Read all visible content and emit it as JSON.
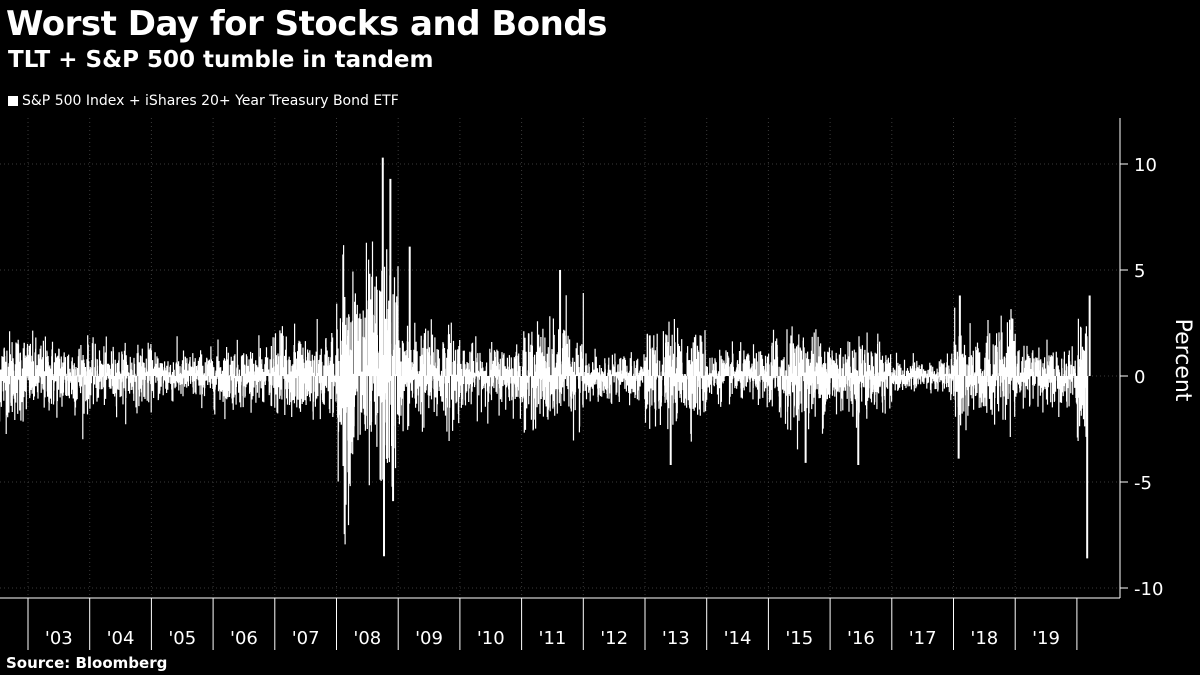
{
  "title": "Worst Day for Stocks and Bonds",
  "subtitle": "TLT + S&P 500 tumble in tandem",
  "source": "Source: Bloomberg",
  "colors": {
    "background": "#000000",
    "series": "#ffffff",
    "grid": "#3a3a3a"
  },
  "chart_data": {
    "type": "bar",
    "title": "Worst Day for Stocks and Bonds",
    "subtitle": "TLT + S&P 500 tumble in tandem",
    "ylabel": "Percent",
    "xlabel": "",
    "ylim": [
      -10.5,
      12
    ],
    "y_ticks": [
      10,
      5,
      0,
      -5,
      -10
    ],
    "y_tick_labels": [
      "10",
      "5",
      "0",
      "-5",
      "-10"
    ],
    "x_range": [
      "2002-07",
      "2020-03"
    ],
    "x_tick_labels": [
      "'03",
      "'04",
      "'05",
      "'06",
      "'07",
      "'08",
      "'09",
      "'10",
      "'11",
      "'12",
      "'13",
      "'14",
      "'15",
      "'16",
      "'17",
      "'18",
      "'19"
    ],
    "x_tick_years": [
      2003,
      2004,
      2005,
      2006,
      2007,
      2008,
      2009,
      2010,
      2011,
      2012,
      2013,
      2014,
      2015,
      2016,
      2017,
      2018,
      2019
    ],
    "legend_position": "top-left",
    "grid": true,
    "series": [
      {
        "name": "S&P 500 Index + iShares 20+ Year Treasury Bond ETF",
        "volatility_by_year": [
          {
            "year": 2002,
            "typical_range": [
              -3.0,
              4.3
            ]
          },
          {
            "year": 2003,
            "typical_range": [
              -3.5,
              2.5
            ]
          },
          {
            "year": 2004,
            "typical_range": [
              -2.5,
              2.2
            ]
          },
          {
            "year": 2005,
            "typical_range": [
              -2.0,
              2.0
            ]
          },
          {
            "year": 2006,
            "typical_range": [
              -2.3,
              2.7
            ]
          },
          {
            "year": 2007,
            "typical_range": [
              -3.0,
              3.8
            ]
          },
          {
            "year": 2008,
            "typical_range": [
              -8.5,
              10.3
            ]
          },
          {
            "year": 2009,
            "typical_range": [
              -4.2,
              4.0
            ]
          },
          {
            "year": 2010,
            "typical_range": [
              -2.5,
              2.5
            ]
          },
          {
            "year": 2011,
            "typical_range": [
              -3.2,
              5.0
            ]
          },
          {
            "year": 2012,
            "typical_range": [
              -1.8,
              1.8
            ]
          },
          {
            "year": 2013,
            "typical_range": [
              -4.2,
              3.0
            ]
          },
          {
            "year": 2014,
            "typical_range": [
              -2.0,
              2.0
            ]
          },
          {
            "year": 2015,
            "typical_range": [
              -4.2,
              3.1
            ]
          },
          {
            "year": 2016,
            "typical_range": [
              -4.2,
              2.5
            ]
          },
          {
            "year": 2017,
            "typical_range": [
              -1.5,
              1.5
            ]
          },
          {
            "year": 2018,
            "typical_range": [
              -3.8,
              3.8
            ]
          },
          {
            "year": 2019,
            "typical_range": [
              -2.8,
              2.0
            ]
          },
          {
            "year": 2020,
            "typical_range": [
              -8.6,
              3.8
            ]
          }
        ],
        "notable_days": [
          {
            "date": "2008-10",
            "value": 10.3
          },
          {
            "date": "2008-10",
            "value": -8.5
          },
          {
            "date": "2008-11",
            "value": 9.3
          },
          {
            "date": "2008-12",
            "value": -5.9
          },
          {
            "date": "2009-03",
            "value": 6.1
          },
          {
            "date": "2011-08",
            "value": 5.0
          },
          {
            "date": "2013-06",
            "value": -4.2
          },
          {
            "date": "2015-08",
            "value": -4.1
          },
          {
            "date": "2016-06",
            "value": -4.2
          },
          {
            "date": "2018-02",
            "value": -3.9
          },
          {
            "date": "2018-02",
            "value": 3.8
          },
          {
            "date": "2020-03",
            "value": 3.8
          },
          {
            "date": "2020-03",
            "value": -8.6
          }
        ]
      }
    ]
  }
}
